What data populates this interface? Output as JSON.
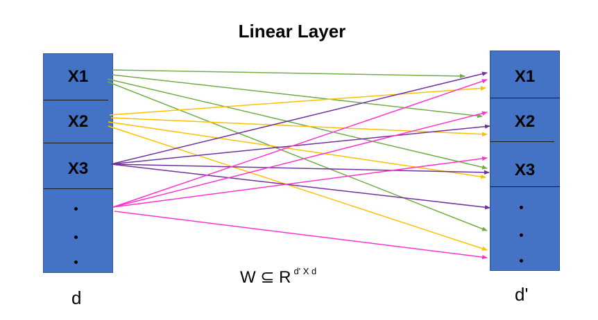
{
  "title": "Linear Layer",
  "left_layer": {
    "labels": [
      "X1",
      "X2",
      "X3"
    ],
    "dim_label": "d"
  },
  "right_layer": {
    "labels": [
      "X1",
      "X2",
      "X3"
    ],
    "dim_label": "d'"
  },
  "weights": {
    "lhs": "W",
    "subset_symbol": "⊆",
    "set": "R",
    "superscript": "d' X d"
  },
  "colors": {
    "box_fill": "#4472C4",
    "from_x1": "#70AD47",
    "from_x2": "#FFC000",
    "from_x3": "#7030A0",
    "from_dots": "#FF33CC"
  }
}
